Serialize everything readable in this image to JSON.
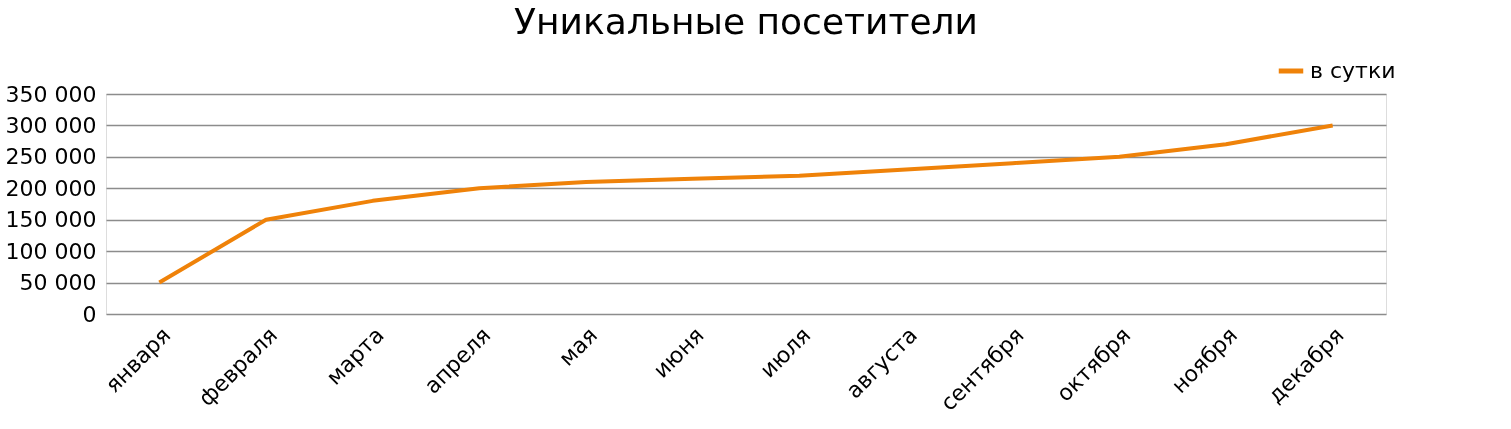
{
  "chart_data": {
    "type": "line",
    "title": "Уникальные посетители",
    "categories": [
      "января",
      "февраля",
      "марта",
      "апреля",
      "мая",
      "июня",
      "июля",
      "августа",
      "сентября",
      "октября",
      "ноября",
      "декабря"
    ],
    "series": [
      {
        "name": "в сутки",
        "color": "#ef8209",
        "values": [
          50000,
          150000,
          180000,
          200000,
          210000,
          215000,
          220000,
          230000,
          240000,
          250000,
          270000,
          300000
        ]
      }
    ],
    "ylim": [
      0,
      350000
    ],
    "yticks": [
      {
        "value": 0,
        "label": "0"
      },
      {
        "value": 50000,
        "label": "50 000"
      },
      {
        "value": 100000,
        "label": "100 000"
      },
      {
        "value": 150000,
        "label": "150 000"
      },
      {
        "value": 200000,
        "label": "200 000"
      },
      {
        "value": 250000,
        "label": "250 000"
      },
      {
        "value": 300000,
        "label": "300 000"
      },
      {
        "value": 350000,
        "label": "350 000"
      }
    ],
    "grid": "y",
    "legend": "top right",
    "marker": "none",
    "line_style": "solid"
  }
}
